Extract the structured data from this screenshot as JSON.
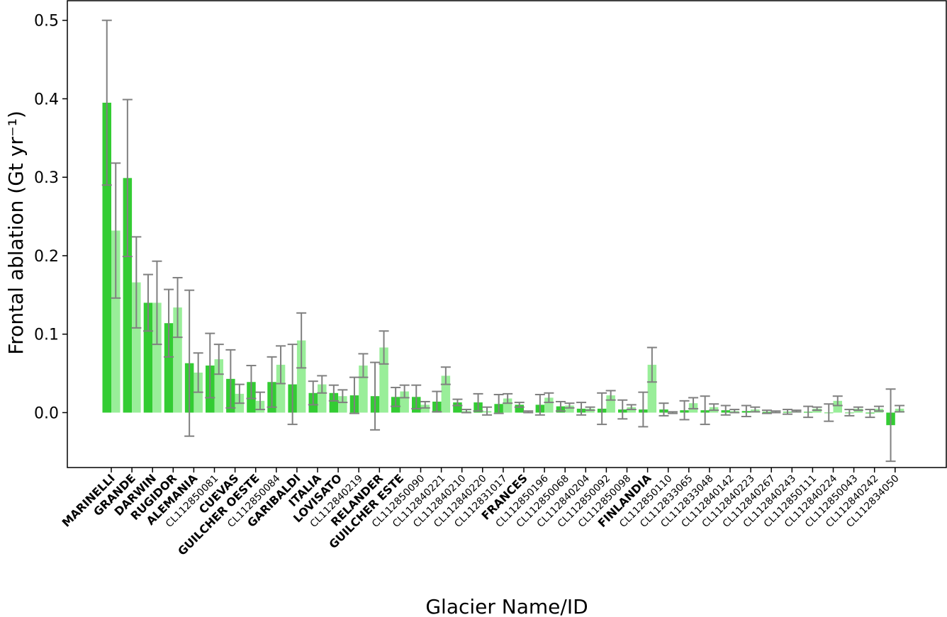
{
  "chart_data": {
    "type": "bar",
    "xlabel": "Glacier Name/ID",
    "ylabel": "Frontal ablation (Gt yr⁻¹)",
    "ylim": [
      -0.07,
      0.525
    ],
    "yticks": [
      0.0,
      0.1,
      0.2,
      0.3,
      0.4,
      0.5
    ],
    "ytick_labels": [
      "0.0",
      "0.1",
      "0.2",
      "0.3",
      "0.4",
      "0.5"
    ],
    "grid": false,
    "colors": {
      "series1": "#33cc33",
      "series2": "#99ee99",
      "error_bar": "#808080"
    },
    "categories": [
      "MARINELLI",
      "GRANDE",
      "DARWIN",
      "RUGIDOR",
      "ALEMANIA",
      "CL112850081",
      "CUEVAS",
      "GUILCHER OESTE",
      "CL112850084",
      "GARIBALDI",
      "ITALIA",
      "LOVISATO",
      "CL112840219",
      "RELANDER",
      "GUILCHER ESTE",
      "CL112850090",
      "CL112840221",
      "CL112840210",
      "CL112840220",
      "CL112831017",
      "FRANCES",
      "CL112850196",
      "CL112850068",
      "CL112840204",
      "CL112850092",
      "CL112850098",
      "FINLANDIA",
      "CL112850110",
      "CL112833065",
      "CL112833048",
      "CL112840142",
      "CL112840223",
      "CL112840267",
      "CL112840243",
      "CL112850111",
      "CL112840224",
      "CL112850043",
      "CL112840242",
      "CL112834050"
    ],
    "bold_categories": [
      "MARINELLI",
      "GRANDE",
      "DARWIN",
      "RUGIDOR",
      "ALEMANIA",
      "CUEVAS",
      "GUILCHER OESTE",
      "GARIBALDI",
      "ITALIA",
      "LOVISATO",
      "RELANDER",
      "GUILCHER ESTE",
      "FRANCES",
      "FINLANDIA"
    ],
    "series": [
      {
        "values": [
          0.395,
          0.299,
          0.14,
          0.114,
          0.063,
          0.06,
          0.043,
          0.039,
          0.039,
          0.036,
          0.025,
          0.025,
          0.022,
          0.021,
          0.02,
          0.02,
          0.014,
          0.013,
          0.013,
          0.011,
          0.01,
          0.01,
          0.008,
          0.005,
          0.005,
          0.004,
          0.004,
          0.004,
          0.003,
          0.003,
          0.003,
          0.002,
          0.001,
          0.001,
          0.001,
          0.0,
          0.0,
          -0.001,
          -0.016
        ],
        "errors": [
          0.105,
          0.1,
          0.036,
          0.043,
          0.093,
          0.041,
          0.037,
          0.021,
          0.032,
          0.051,
          0.015,
          0.01,
          0.023,
          0.043,
          0.012,
          0.015,
          0.013,
          0.004,
          0.011,
          0.012,
          0.003,
          0.013,
          0.006,
          0.008,
          0.02,
          0.012,
          0.022,
          0.008,
          0.012,
          0.018,
          0.006,
          0.007,
          0.002,
          0.003,
          0.007,
          0.011,
          0.004,
          0.005,
          0.046
        ]
      },
      {
        "values": [
          0.232,
          0.166,
          0.14,
          0.134,
          0.051,
          0.068,
          0.024,
          0.015,
          0.061,
          0.092,
          0.036,
          0.021,
          0.06,
          0.083,
          0.027,
          0.01,
          0.047,
          0.002,
          0.002,
          0.018,
          0.001,
          0.019,
          0.009,
          0.005,
          0.022,
          0.007,
          0.061,
          0.0,
          0.012,
          0.007,
          0.002,
          0.004,
          0.001,
          0.002,
          0.005,
          0.015,
          0.005,
          0.005,
          0.005
        ],
        "errors": [
          0.086,
          0.058,
          0.053,
          0.038,
          0.025,
          0.019,
          0.012,
          0.011,
          0.024,
          0.035,
          0.011,
          0.008,
          0.015,
          0.021,
          0.008,
          0.004,
          0.011,
          0.002,
          0.005,
          0.006,
          0.001,
          0.006,
          0.003,
          0.002,
          0.006,
          0.003,
          0.022,
          0.001,
          0.007,
          0.004,
          0.002,
          0.003,
          0.001,
          0.001,
          0.002,
          0.006,
          0.002,
          0.003,
          0.004
        ]
      }
    ]
  }
}
